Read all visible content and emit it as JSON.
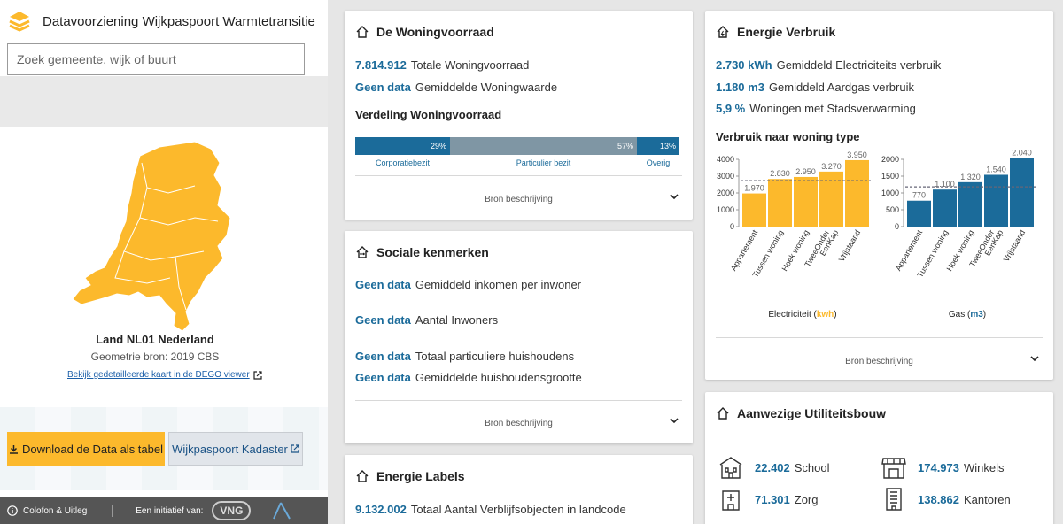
{
  "app": {
    "title": "Datavoorziening Wijkpaspoort Warmtetransitie",
    "logo_icon": "layers-icon"
  },
  "search": {
    "placeholder": "Zoek gemeente, wijk of buurt"
  },
  "map": {
    "region_title": "Land NL01 Nederland",
    "geo_source": "Geometrie bron: 2019 CBS",
    "dego_link": "Bekijk gedetailleerde kaart in de DEGO viewer",
    "fill_color": "#fcb92c"
  },
  "buttons": {
    "download": "Download de Data als tabel",
    "kadaster": "Wijkpaspoort Kadaster"
  },
  "footer": {
    "colofon": "Colofon & Uitleg",
    "initiatief": "Een initiatief van:",
    "vng": "VNG"
  },
  "woningvoorraad": {
    "title": "De Woningvoorraad",
    "stats": [
      {
        "value": "7.814.912",
        "label": "Totale Woningvoorraad"
      },
      {
        "value": "Geen data",
        "label": "Gemiddelde Woningwaarde"
      }
    ],
    "verdeling_title": "Verdeling Woningvoorraad",
    "segments": [
      {
        "label": "Corporatiebezit",
        "pct_text": "29%",
        "pct": 29,
        "color": "#1b6b9a"
      },
      {
        "label": "Particulier bezit",
        "pct_text": "57%",
        "pct": 57,
        "color": "#7f96a4"
      },
      {
        "label": "Overig",
        "pct_text": "13%",
        "pct": 13,
        "color": "#1b6b9a"
      }
    ],
    "bron": "Bron beschrijving"
  },
  "sociale": {
    "title": "Sociale kenmerken",
    "stats": [
      {
        "value": "Geen data",
        "label": "Gemiddeld inkomen per inwoner"
      },
      {
        "value": "Geen data",
        "label": "Aantal Inwoners"
      },
      {
        "value": "Geen data",
        "label": "Totaal particuliere huishoudens"
      },
      {
        "value": "Geen data",
        "label": "Gemiddelde huishoudensgrootte"
      }
    ],
    "bron": "Bron beschrijving"
  },
  "energie_labels": {
    "title": "Energie Labels",
    "stats": [
      {
        "value": "9.132.002",
        "label": "Totaal Aantal Verblijfsobjecten in landcode"
      }
    ]
  },
  "energie_verbruik": {
    "title": "Energie Verbruik",
    "stats": [
      {
        "value": "2.730 kWh",
        "label": "Gemiddeld Electriciteits verbruik"
      },
      {
        "value": "1.180 m3",
        "label": "Gemiddeld Aardgas verbruik"
      },
      {
        "value": "5,9 %",
        "label": "Woningen met Stadsverwarming"
      }
    ],
    "chart_title": "Verbruik naar woning type",
    "bron": "Bron beschrijving"
  },
  "utiliteit": {
    "title": "Aanwezige Utiliteitsbouw",
    "items": [
      {
        "value": "22.402",
        "label": "School",
        "icon": "school-icon"
      },
      {
        "value": "174.973",
        "label": "Winkels",
        "icon": "shop-icon"
      },
      {
        "value": "71.301",
        "label": "Zorg",
        "icon": "hospital-icon"
      },
      {
        "value": "138.862",
        "label": "Kantoren",
        "icon": "office-icon"
      }
    ]
  },
  "chart_data": [
    {
      "type": "bar",
      "xlabel_prefix": "Electriciteit (",
      "xlabel_unit": "kwh",
      "xlabel_suffix": ")",
      "categories": [
        "Appartement",
        "Tussen woning",
        "Hoek woning",
        "TweeOnder EenKap",
        "Vrijstaand"
      ],
      "values": [
        1970,
        2830,
        2950,
        3270,
        3950
      ],
      "value_labels": [
        "1.970",
        "2.830",
        "2.950",
        "3.270",
        "3.950"
      ],
      "average": 2730,
      "ylim": [
        0,
        4000
      ],
      "yticks": [
        0,
        1000,
        2000,
        3000,
        4000
      ],
      "color": "#fcb92c"
    },
    {
      "type": "bar",
      "xlabel_prefix": "Gas (",
      "xlabel_unit": "m3",
      "xlabel_suffix": ")",
      "categories": [
        "Appartement",
        "Tussen woning",
        "Hoek woning",
        "TweeOnder EenKap",
        "Vrijstaand"
      ],
      "values": [
        770,
        1100,
        1320,
        1540,
        2040
      ],
      "value_labels": [
        "770",
        "1.100",
        "1.320",
        "1.540",
        "2.040"
      ],
      "average": 1180,
      "ylim": [
        0,
        2000
      ],
      "yticks": [
        0,
        500,
        1000,
        1500,
        2000
      ],
      "color": "#1b6b9a"
    }
  ]
}
